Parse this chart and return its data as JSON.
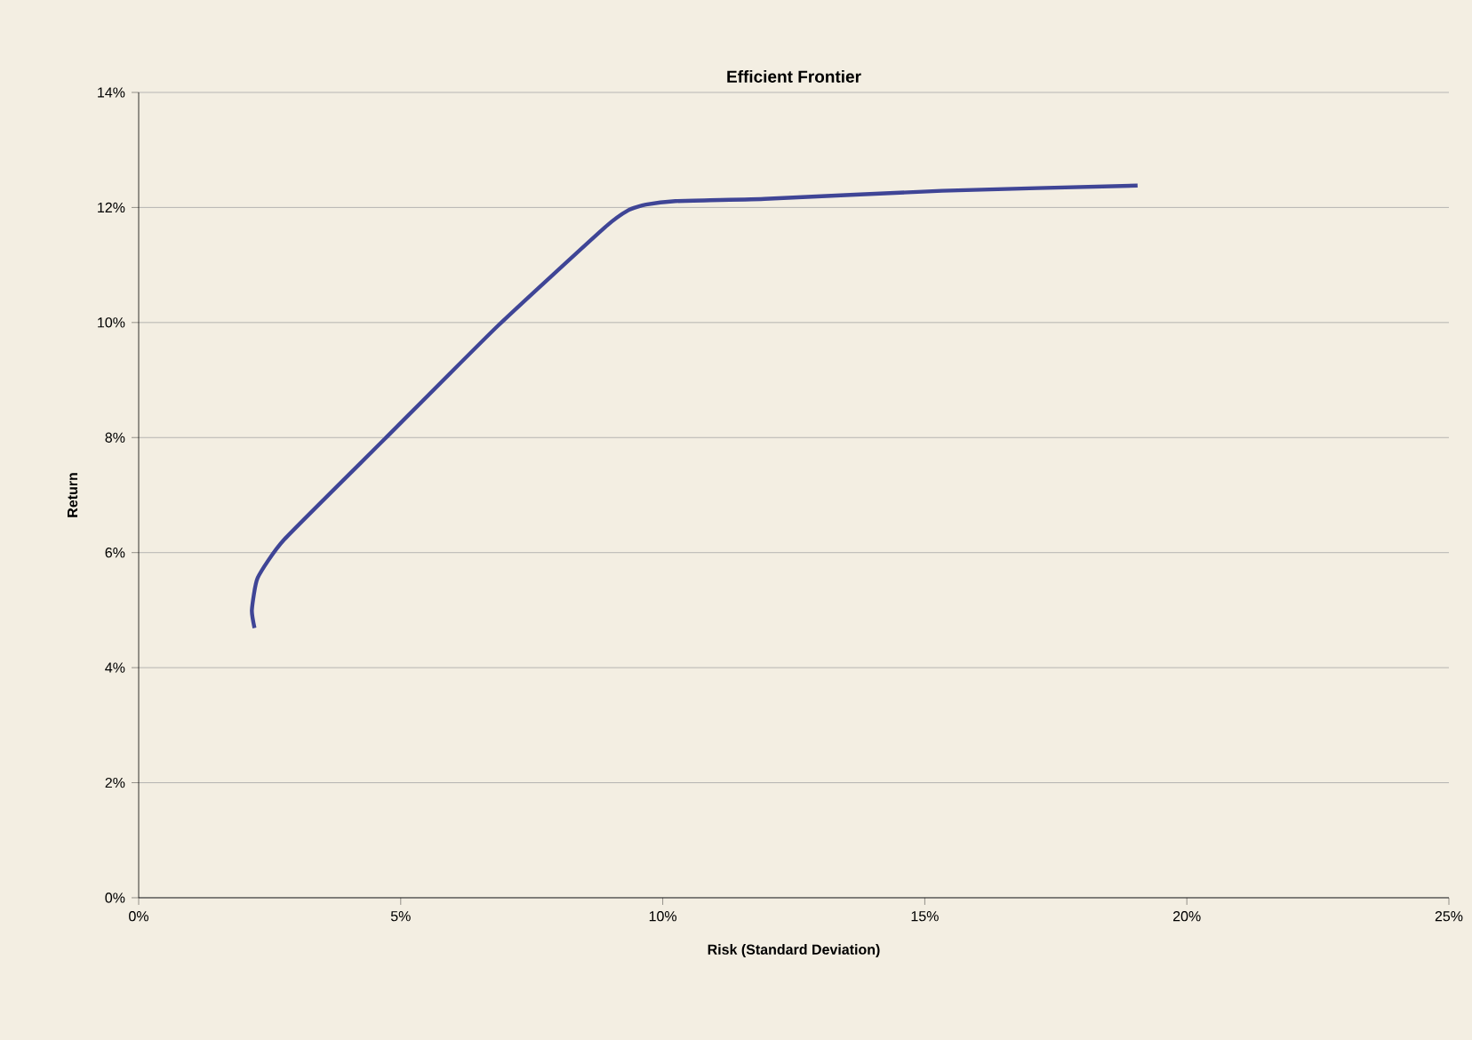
{
  "chart_data": {
    "type": "line",
    "title": "Efficient Frontier",
    "xlabel": "Risk (Standard Deviation)",
    "ylabel": "Return",
    "x": [
      2.21,
      2.16,
      2.27,
      2.78,
      4.7,
      6.85,
      8.89,
      9.34,
      9.68,
      10.24,
      11.94,
      15.33,
      19.06
    ],
    "values": [
      4.69,
      5.0,
      5.56,
      6.23,
      7.98,
      9.94,
      11.65,
      11.95,
      12.05,
      12.11,
      12.15,
      12.29,
      12.38
    ],
    "color": "#3f4596",
    "xlim": [
      0,
      25
    ],
    "ylim": [
      0,
      14
    ],
    "xticks": [
      {
        "value": 0,
        "label": "0%"
      },
      {
        "value": 5,
        "label": "5%"
      },
      {
        "value": 10,
        "label": "10%"
      },
      {
        "value": 15,
        "label": "15%"
      },
      {
        "value": 20,
        "label": "20%"
      },
      {
        "value": 25,
        "label": "25%"
      }
    ],
    "yticks": [
      {
        "value": 0,
        "label": "0%"
      },
      {
        "value": 2,
        "label": "2%"
      },
      {
        "value": 4,
        "label": "4%"
      },
      {
        "value": 6,
        "label": "6%"
      },
      {
        "value": 8,
        "label": "8%"
      },
      {
        "value": 10,
        "label": "10%"
      },
      {
        "value": 12,
        "label": "12%"
      },
      {
        "value": 14,
        "label": "14%"
      }
    ],
    "grid": "y",
    "marker": "none",
    "line_style": "solid"
  }
}
